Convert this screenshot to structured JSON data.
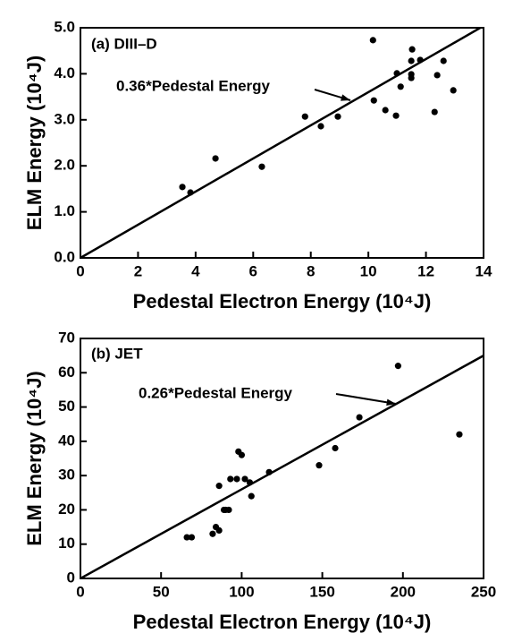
{
  "chart_data": [
    {
      "type": "scatter",
      "panel_label": "(a) DIII–D",
      "annotation": "0.36*Pedestal Energy",
      "x_label": "Pedestal Electron Energy (10⁴J)",
      "y_label": "ELM Energy (10⁴J)",
      "xlim": [
        0,
        14
      ],
      "ylim": [
        0,
        5
      ],
      "xticks": [
        0,
        2,
        4,
        6,
        8,
        10,
        12,
        14
      ],
      "yticks": [
        {
          "value": 0,
          "label": "0.0"
        },
        {
          "value": 1,
          "label": "1.0"
        },
        {
          "value": 2,
          "label": "2.0"
        },
        {
          "value": 3,
          "label": "3.0"
        },
        {
          "value": 4,
          "label": "4.0"
        },
        {
          "value": 5,
          "label": "5.0"
        }
      ],
      "color": "#000000",
      "x": [
        3.54,
        3.82,
        4.69,
        6.3,
        7.8,
        8.35,
        8.94,
        10.16,
        10.19,
        10.59,
        10.96,
        10.99,
        11.12,
        11.49,
        11.52,
        11.49,
        11.49,
        11.8,
        12.3,
        12.39,
        12.61,
        12.95
      ],
      "values": [
        1.54,
        1.42,
        2.16,
        1.98,
        3.07,
        2.86,
        3.07,
        4.73,
        3.42,
        3.21,
        3.09,
        4.01,
        3.72,
        3.99,
        4.53,
        4.28,
        3.91,
        4.3,
        3.17,
        3.97,
        4.28,
        3.64
      ],
      "fit": {
        "x": [
          0,
          14
        ],
        "values": [
          0,
          5.04
        ]
      }
    },
    {
      "type": "scatter",
      "panel_label": "(b) JET",
      "annotation": "0.26*Pedestal Energy",
      "x_label": "Pedestal Electron Energy (10⁴J)",
      "y_label": "ELM Energy (10⁴J)",
      "xlim": [
        0,
        250
      ],
      "ylim": [
        0,
        70
      ],
      "xticks": [
        0,
        50,
        100,
        150,
        200,
        250
      ],
      "yticks": [
        0,
        10,
        20,
        30,
        40,
        50,
        60,
        70
      ],
      "color": "#000000",
      "x": [
        66,
        69,
        82,
        84,
        86,
        86,
        89,
        90,
        92,
        93,
        97,
        98,
        100,
        102,
        105,
        106,
        117,
        148,
        158,
        173,
        197,
        235
      ],
      "values": [
        12,
        12,
        13,
        15,
        14,
        27,
        20,
        20,
        20,
        29,
        29,
        37,
        36,
        29,
        28,
        24,
        31,
        33,
        38,
        47,
        62,
        42
      ],
      "fit": {
        "x": [
          0,
          250
        ],
        "values": [
          0,
          65
        ]
      }
    }
  ]
}
